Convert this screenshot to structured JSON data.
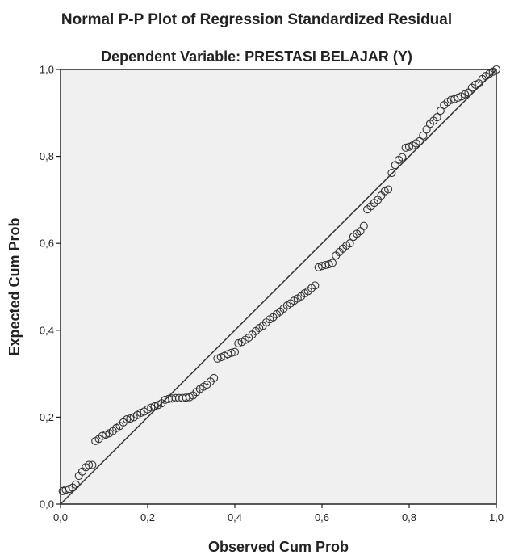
{
  "chart_data": {
    "type": "scatter",
    "title": "Normal P-P Plot of Regression Standardized Residual",
    "subtitle": "Dependent Variable: PRESTASI BELAJAR (Y)",
    "xlabel": "Observed Cum Prob",
    "ylabel": "Expected Cum Prob",
    "xlim": [
      0,
      1
    ],
    "ylim": [
      0,
      1
    ],
    "xticks": [
      "0,0",
      "0,2",
      "0,4",
      "0,6",
      "0,8",
      "1,0"
    ],
    "yticks": [
      "0,0",
      "0,2",
      "0,4",
      "0,6",
      "0,8",
      "1,0"
    ],
    "grid": false,
    "plot_background": "#f0f0f0",
    "marker_color": "#333333",
    "reference_line": {
      "from": [
        0,
        0
      ],
      "to": [
        1,
        1
      ]
    },
    "points": [
      [
        0.005,
        0.03
      ],
      [
        0.012,
        0.033
      ],
      [
        0.02,
        0.035
      ],
      [
        0.028,
        0.038
      ],
      [
        0.035,
        0.045
      ],
      [
        0.042,
        0.065
      ],
      [
        0.05,
        0.075
      ],
      [
        0.058,
        0.085
      ],
      [
        0.065,
        0.09
      ],
      [
        0.073,
        0.09
      ],
      [
        0.08,
        0.145
      ],
      [
        0.088,
        0.15
      ],
      [
        0.096,
        0.157
      ],
      [
        0.104,
        0.16
      ],
      [
        0.112,
        0.163
      ],
      [
        0.12,
        0.168
      ],
      [
        0.128,
        0.175
      ],
      [
        0.136,
        0.18
      ],
      [
        0.144,
        0.188
      ],
      [
        0.152,
        0.195
      ],
      [
        0.16,
        0.197
      ],
      [
        0.168,
        0.2
      ],
      [
        0.176,
        0.205
      ],
      [
        0.184,
        0.21
      ],
      [
        0.192,
        0.213
      ],
      [
        0.2,
        0.218
      ],
      [
        0.208,
        0.222
      ],
      [
        0.216,
        0.225
      ],
      [
        0.224,
        0.228
      ],
      [
        0.232,
        0.232
      ],
      [
        0.24,
        0.24
      ],
      [
        0.248,
        0.242
      ],
      [
        0.256,
        0.243
      ],
      [
        0.264,
        0.244
      ],
      [
        0.272,
        0.244
      ],
      [
        0.28,
        0.244
      ],
      [
        0.288,
        0.245
      ],
      [
        0.296,
        0.246
      ],
      [
        0.304,
        0.25
      ],
      [
        0.312,
        0.258
      ],
      [
        0.32,
        0.265
      ],
      [
        0.328,
        0.27
      ],
      [
        0.336,
        0.275
      ],
      [
        0.344,
        0.282
      ],
      [
        0.352,
        0.29
      ],
      [
        0.36,
        0.335
      ],
      [
        0.368,
        0.338
      ],
      [
        0.376,
        0.341
      ],
      [
        0.384,
        0.345
      ],
      [
        0.392,
        0.348
      ],
      [
        0.4,
        0.35
      ],
      [
        0.408,
        0.37
      ],
      [
        0.416,
        0.373
      ],
      [
        0.424,
        0.378
      ],
      [
        0.432,
        0.383
      ],
      [
        0.44,
        0.39
      ],
      [
        0.448,
        0.398
      ],
      [
        0.456,
        0.405
      ],
      [
        0.464,
        0.41
      ],
      [
        0.472,
        0.418
      ],
      [
        0.48,
        0.425
      ],
      [
        0.488,
        0.43
      ],
      [
        0.496,
        0.437
      ],
      [
        0.504,
        0.443
      ],
      [
        0.512,
        0.45
      ],
      [
        0.52,
        0.457
      ],
      [
        0.528,
        0.462
      ],
      [
        0.536,
        0.468
      ],
      [
        0.544,
        0.473
      ],
      [
        0.552,
        0.478
      ],
      [
        0.56,
        0.485
      ],
      [
        0.568,
        0.49
      ],
      [
        0.576,
        0.497
      ],
      [
        0.584,
        0.503
      ],
      [
        0.592,
        0.545
      ],
      [
        0.6,
        0.548
      ],
      [
        0.608,
        0.55
      ],
      [
        0.616,
        0.552
      ],
      [
        0.624,
        0.555
      ],
      [
        0.632,
        0.572
      ],
      [
        0.64,
        0.58
      ],
      [
        0.648,
        0.588
      ],
      [
        0.656,
        0.595
      ],
      [
        0.664,
        0.6
      ],
      [
        0.672,
        0.615
      ],
      [
        0.68,
        0.622
      ],
      [
        0.688,
        0.628
      ],
      [
        0.696,
        0.64
      ],
      [
        0.704,
        0.678
      ],
      [
        0.712,
        0.685
      ],
      [
        0.72,
        0.693
      ],
      [
        0.728,
        0.7
      ],
      [
        0.736,
        0.71
      ],
      [
        0.744,
        0.72
      ],
      [
        0.752,
        0.724
      ],
      [
        0.76,
        0.762
      ],
      [
        0.768,
        0.78
      ],
      [
        0.776,
        0.792
      ],
      [
        0.784,
        0.798
      ],
      [
        0.792,
        0.82
      ],
      [
        0.8,
        0.822
      ],
      [
        0.808,
        0.825
      ],
      [
        0.816,
        0.83
      ],
      [
        0.824,
        0.835
      ],
      [
        0.832,
        0.848
      ],
      [
        0.84,
        0.862
      ],
      [
        0.848,
        0.875
      ],
      [
        0.856,
        0.882
      ],
      [
        0.864,
        0.89
      ],
      [
        0.872,
        0.905
      ],
      [
        0.88,
        0.918
      ],
      [
        0.888,
        0.925
      ],
      [
        0.896,
        0.93
      ],
      [
        0.904,
        0.932
      ],
      [
        0.912,
        0.935
      ],
      [
        0.92,
        0.938
      ],
      [
        0.928,
        0.943
      ],
      [
        0.936,
        0.947
      ],
      [
        0.944,
        0.958
      ],
      [
        0.952,
        0.965
      ],
      [
        0.96,
        0.968
      ],
      [
        0.968,
        0.978
      ],
      [
        0.976,
        0.985
      ],
      [
        0.984,
        0.99
      ],
      [
        0.992,
        0.995
      ],
      [
        1.0,
        1.0
      ]
    ]
  }
}
